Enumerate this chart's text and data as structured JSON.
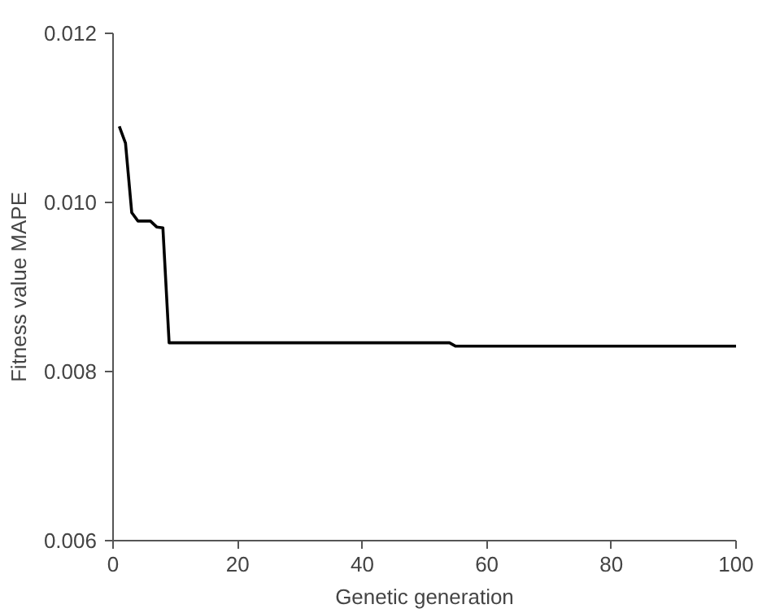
{
  "chart_data": {
    "type": "line",
    "xlabel": "Genetic generation",
    "ylabel": "Fitness value MAPE",
    "x": [
      1,
      2,
      3,
      4,
      6,
      7,
      8,
      9,
      54,
      55,
      100
    ],
    "series": [
      {
        "color": "#000000",
        "values": [
          0.0109,
          0.0107,
          0.00988,
          0.00978,
          0.00978,
          0.00971,
          0.0097,
          0.00834,
          0.00834,
          0.0083,
          0.0083
        ]
      }
    ],
    "xlim": [
      0,
      100
    ],
    "ylim": [
      0.006,
      0.012
    ],
    "xticks": [
      0,
      20,
      40,
      60,
      80,
      100
    ],
    "yticks": [
      0.006,
      0.008,
      {
        "value": 0.01,
        "label": "0.010"
      },
      0.012
    ],
    "grid": false,
    "marker": "none",
    "line_style": "solid"
  }
}
